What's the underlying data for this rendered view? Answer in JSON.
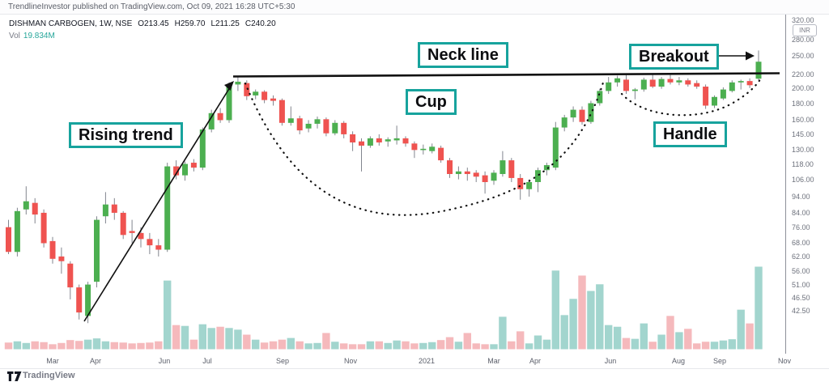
{
  "attribution": "TrendlineInvestor published on TradingView.com, Oct 09, 2021 16:28 UTC+5:30",
  "legend": {
    "symbol_line": "DISHMAN CARBOGEN, 1W, NSE",
    "open": "O213.45",
    "high": "H259.70",
    "low": "L211.25",
    "close": "C240.20",
    "vol_label": "Vol",
    "vol_value": "19.834M"
  },
  "annotations": {
    "rising_trend": "Rising trend",
    "neck_line": "Neck line",
    "cup": "Cup",
    "breakout": "Breakout",
    "handle": "Handle"
  },
  "axis": {
    "currency_badge": "INR",
    "price_ticks": [
      320,
      280,
      250,
      220,
      200,
      180,
      160,
      145,
      130,
      118,
      106,
      94,
      84,
      76,
      68,
      62,
      56,
      51,
      46.5,
      42.5
    ],
    "time_labels": [
      {
        "label": "Mar",
        "x": 65
      },
      {
        "label": "Apr",
        "x": 118
      },
      {
        "label": "Jun",
        "x": 203
      },
      {
        "label": "Jul",
        "x": 256
      },
      {
        "label": "Sep",
        "x": 349
      },
      {
        "label": "Nov",
        "x": 433
      },
      {
        "label": "2021",
        "x": 527
      },
      {
        "label": "Mar",
        "x": 610
      },
      {
        "label": "Apr",
        "x": 661
      },
      {
        "label": "Jun",
        "x": 754
      },
      {
        "label": "Aug",
        "x": 838
      },
      {
        "label": "Sep",
        "x": 889
      },
      {
        "label": "Nov",
        "x": 969
      }
    ]
  },
  "footer": {
    "brand": "TradingView"
  },
  "colors": {
    "up": "#4caf50",
    "down": "#ef5350",
    "vol_up": "#a2d5ce",
    "vol_down": "#f5b9bc",
    "wick": "#82858e",
    "annotation_border": "#17a39d",
    "drawing": "#111111",
    "vol_value_text": "#26a69a"
  },
  "chart_data": {
    "type": "candlestick",
    "symbol": "DISHMAN CARBOGEN",
    "interval": "1W",
    "exchange": "NSE",
    "price_scale": "logarithmic",
    "ylim": [
      42.5,
      320
    ],
    "neckline_price": 220,
    "pattern": "cup and handle with rising trend and breakout",
    "last_bar": {
      "open": 213.45,
      "high": 259.7,
      "low": 211.25,
      "close": 240.2,
      "volume": "19.834M"
    },
    "columns": [
      "open",
      "high",
      "low",
      "close",
      "volume_millions"
    ],
    "candles": [
      [
        76,
        80,
        63,
        64,
        1.6
      ],
      [
        64,
        87,
        62,
        85,
        1.9
      ],
      [
        86,
        101,
        83,
        91,
        1.5
      ],
      [
        90,
        93,
        78,
        83,
        1.9
      ],
      [
        84,
        86,
        66,
        68,
        1.7
      ],
      [
        69,
        71,
        59,
        61,
        1.2
      ],
      [
        62,
        66,
        55,
        60,
        1.5
      ],
      [
        59,
        60,
        46,
        50,
        2.2
      ],
      [
        50,
        51,
        40,
        42,
        2.0
      ],
      [
        41,
        52,
        39,
        51,
        2.3
      ],
      [
        52,
        82,
        50,
        80,
        2.6
      ],
      [
        82,
        97,
        78,
        89,
        1.9
      ],
      [
        89,
        93,
        80,
        84,
        1.7
      ],
      [
        84,
        85,
        70,
        72,
        1.6
      ],
      [
        74,
        80,
        68,
        73,
        1.4
      ],
      [
        73,
        76,
        66,
        70,
        1.5
      ],
      [
        70,
        73,
        63,
        67,
        1.6
      ],
      [
        67,
        70,
        62,
        65,
        1.9
      ],
      [
        65,
        119,
        64,
        116,
        16.5
      ],
      [
        116,
        121,
        106,
        109,
        5.8
      ],
      [
        109,
        120,
        105,
        118,
        5.6
      ],
      [
        119,
        122,
        112,
        115,
        2.3
      ],
      [
        115,
        152,
        113,
        150,
        6.0
      ],
      [
        150,
        172,
        147,
        168,
        5.1
      ],
      [
        168,
        174,
        157,
        160,
        5.4
      ],
      [
        160,
        208,
        157,
        204,
        5.1
      ],
      [
        205,
        217,
        196,
        209,
        4.7
      ],
      [
        207,
        211,
        184,
        189,
        3.5
      ],
      [
        190,
        198,
        185,
        195,
        2.3
      ],
      [
        195,
        197,
        180,
        184,
        1.6
      ],
      [
        186,
        190,
        177,
        183,
        1.9
      ],
      [
        184,
        186,
        154,
        157,
        2.3
      ],
      [
        157,
        176,
        154,
        162,
        2.7
      ],
      [
        162,
        165,
        145,
        149,
        1.9
      ],
      [
        151,
        160,
        147,
        156,
        1.4
      ],
      [
        156,
        164,
        151,
        161,
        1.5
      ],
      [
        161,
        163,
        143,
        146,
        3.9
      ],
      [
        146,
        160,
        144,
        157,
        1.8
      ],
      [
        157,
        159,
        141,
        145,
        1.4
      ],
      [
        145,
        148,
        129,
        137,
        1.2
      ],
      [
        138,
        141,
        112,
        134,
        1.2
      ],
      [
        134,
        143,
        132,
        141,
        1.9
      ],
      [
        141,
        145,
        134,
        137,
        1.9
      ],
      [
        138,
        142,
        133,
        140,
        1.5
      ],
      [
        139,
        154,
        135,
        141,
        2.1
      ],
      [
        141,
        143,
        133,
        136,
        1.9
      ],
      [
        136,
        138,
        123,
        130,
        1.4
      ],
      [
        130,
        135,
        126,
        131,
        1.5
      ],
      [
        129,
        136,
        127,
        133,
        1.7
      ],
      [
        132,
        134,
        119,
        121,
        2.2
      ],
      [
        121,
        123,
        107,
        110,
        2.9
      ],
      [
        110,
        116,
        106,
        112,
        1.8
      ],
      [
        112,
        115,
        105,
        110,
        3.9
      ],
      [
        111,
        113,
        104,
        108,
        1.4
      ],
      [
        109,
        112,
        96,
        104,
        1.2
      ],
      [
        105,
        113,
        102,
        111,
        1.2
      ],
      [
        110,
        129,
        108,
        121,
        7.8
      ],
      [
        121,
        123,
        104,
        107,
        1.9
      ],
      [
        107,
        110,
        92,
        99,
        4.3
      ],
      [
        99,
        106,
        94,
        104,
        1.4
      ],
      [
        104,
        115,
        97,
        113,
        3.3
      ],
      [
        113,
        119,
        109,
        117,
        2.3
      ],
      [
        115,
        158,
        113,
        152,
        18.9
      ],
      [
        152,
        166,
        148,
        163,
        8.2
      ],
      [
        163,
        176,
        158,
        172,
        12.1
      ],
      [
        172,
        176,
        155,
        158,
        17.7
      ],
      [
        158,
        183,
        156,
        180,
        14.0
      ],
      [
        180,
        199,
        177,
        196,
        15.6
      ],
      [
        196,
        216,
        192,
        208,
        5.8
      ],
      [
        208,
        218,
        202,
        214,
        5.4
      ],
      [
        212,
        219,
        192,
        196,
        2.7
      ],
      [
        196,
        200,
        185,
        198,
        2.5
      ],
      [
        198,
        215,
        195,
        212,
        6.2
      ],
      [
        212,
        220,
        200,
        202,
        1.8
      ],
      [
        202,
        216,
        199,
        213,
        3.5
      ],
      [
        213,
        219,
        205,
        208,
        8.0
      ],
      [
        208,
        216,
        204,
        211,
        4.1
      ],
      [
        211,
        214,
        202,
        205,
        4.9
      ],
      [
        207,
        211,
        199,
        202,
        1.4
      ],
      [
        202,
        205,
        173,
        177,
        1.8
      ],
      [
        177,
        190,
        174,
        188,
        1.8
      ],
      [
        186,
        201,
        184,
        198,
        2.1
      ],
      [
        196,
        211,
        194,
        208,
        2.4
      ],
      [
        208,
        212,
        198,
        210,
        9.5
      ],
      [
        210,
        214,
        200,
        204,
        6.2
      ],
      [
        213.45,
        259.7,
        211.25,
        240.2,
        19.834
      ]
    ]
  }
}
